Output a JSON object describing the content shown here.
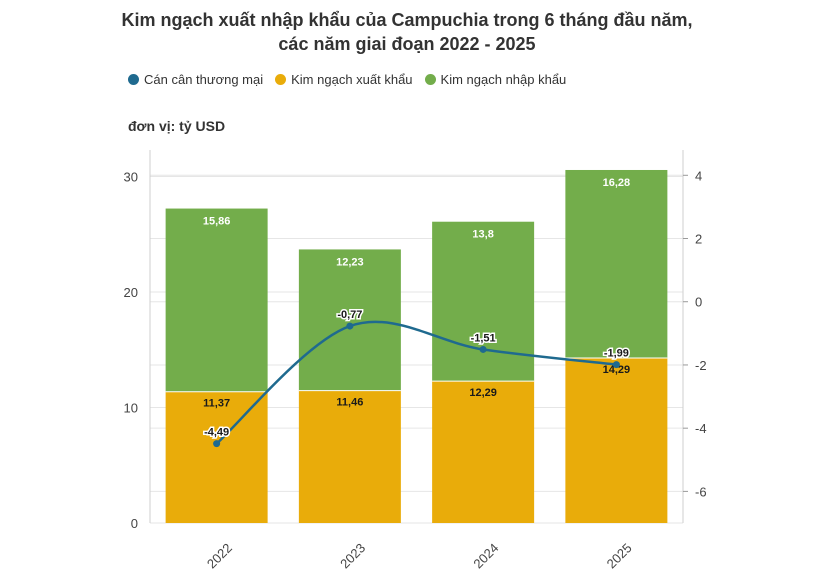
{
  "title_line1": "Kim ngạch xuất nhập khẩu của Campuchia trong 6 tháng đầu năm,",
  "title_line2": "các năm giai đoạn 2022 - 2025",
  "unit_label": "đơn vị: tỷ USD",
  "colors": {
    "balance": "#1f6a8f",
    "export": "#e9ac0a",
    "import": "#73ad4b",
    "grid": "#e6e6e6"
  },
  "chart_data": {
    "type": "bar",
    "stacked": true,
    "categories": [
      "2022",
      "2023",
      "2024",
      "2025"
    ],
    "series": [
      {
        "name": "Kim ngạch xuất khẩu",
        "axis": "left",
        "values": [
          11.37,
          11.46,
          12.29,
          14.29
        ],
        "labels": [
          "11,37",
          "11,46",
          "12,29",
          "14,29"
        ]
      },
      {
        "name": "Kim ngạch nhập khẩu",
        "axis": "left",
        "values": [
          15.86,
          12.23,
          13.8,
          16.28
        ],
        "labels": [
          "15,86",
          "12,23",
          "13,8",
          "16,28"
        ]
      },
      {
        "name": "Cán cân thương mại",
        "type": "line",
        "axis": "right",
        "values": [
          -4.49,
          -0.77,
          -1.51,
          -1.99
        ],
        "labels": [
          "-4,49",
          "-0,77",
          "-1,51",
          "-1,99"
        ]
      }
    ],
    "left_axis": {
      "ylim": [
        0,
        32.3
      ],
      "ticks": [
        0,
        10,
        20,
        30
      ]
    },
    "right_axis": {
      "ylim": [
        -7,
        4.8
      ],
      "ticks": [
        -6,
        -4,
        -2,
        0,
        2,
        4
      ]
    },
    "legend_order": [
      "Cán cân thương mại",
      "Kim ngạch xuất khẩu",
      "Kim ngạch nhập khẩu"
    ],
    "legend_position": "top-left"
  }
}
